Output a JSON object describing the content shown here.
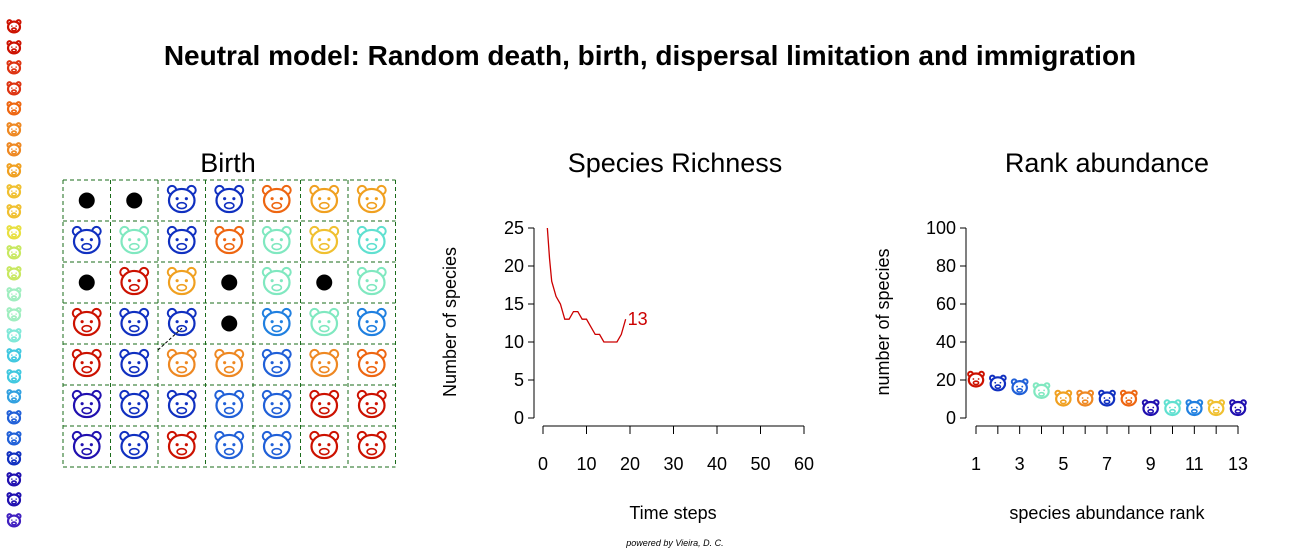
{
  "title": "Neutral model:  Random death, birth, dispersal limitation and immigration",
  "credit": "powered by Vieira, D. C.",
  "species_colors": [
    "#cc1100",
    "#dd3311",
    "#ee6611",
    "#ee8822",
    "#f0a020",
    "#f0c030",
    "#e8e040",
    "#c8e860",
    "#a0eec0",
    "#80e8d8",
    "#40c8e0",
    "#30a0e0",
    "#2060d8",
    "#1030c0",
    "#2010b0",
    "#4020c0"
  ],
  "birth_panel": {
    "title": "Birth",
    "grid": [
      [
        "empty",
        "empty",
        "lion-icon",
        "lion-icon",
        "raccoon-icon",
        "cow-icon",
        "cow-icon"
      ],
      [
        "tiger-icon",
        "monkey-icon",
        "lion-icon",
        "raccoon-icon",
        "monkey-icon",
        "fox-icon",
        "goat-icon"
      ],
      [
        "empty",
        "cat-icon",
        "cow-icon",
        "empty",
        "monkey-icon",
        "empty",
        "monkey-icon"
      ],
      [
        "cat-icon",
        "tiger-icon",
        "tiger-icon",
        "empty",
        "goat-icon",
        "monkey-icon",
        "wolf-icon"
      ],
      [
        "cat-icon",
        "tiger-icon",
        "pig-icon",
        "pig-icon",
        "bull-icon",
        "pig-icon",
        "raccoon-icon"
      ],
      [
        "zebra-icon",
        "tiger-icon",
        "tiger-icon",
        "bull-icon",
        "bull-icon",
        "cat-icon",
        "cat-icon"
      ],
      [
        "zebra-icon",
        "tiger-icon",
        "cat-icon",
        "bull-icon",
        "bull-icon",
        "cat-icon",
        "cat-icon"
      ]
    ],
    "cell_colors": [
      [
        "",
        "",
        "#1030c0",
        "#1030c0",
        "#ee6611",
        "#f0a020",
        "#f0a020"
      ],
      [
        "#1030c0",
        "#80e8c0",
        "#1030c0",
        "#ee6611",
        "#80e8c0",
        "#f0c030",
        "#60e0d0"
      ],
      [
        "",
        "#cc1100",
        "#f0a020",
        "",
        "#80e8c0",
        "",
        "#80e8c0"
      ],
      [
        "#cc1100",
        "#1030c0",
        "#1030c0",
        "",
        "#2080e0",
        "#80e8c0",
        "#2080e0"
      ],
      [
        "#cc1100",
        "#1030c0",
        "#ee8822",
        "#ee8822",
        "#2060d8",
        "#ee8822",
        "#ee6611"
      ],
      [
        "#2010b0",
        "#1030c0",
        "#1030c0",
        "#2060d8",
        "#2060d8",
        "#cc1100",
        "#cc1100"
      ],
      [
        "#2010b0",
        "#1030c0",
        "#cc1100",
        "#2060d8",
        "#2060d8",
        "#cc1100",
        "#cc1100"
      ]
    ]
  },
  "chart_data": [
    {
      "type": "line",
      "title": "Species Richness",
      "xlabel": "Time steps",
      "ylabel": "Number of species",
      "xlim": [
        0,
        60
      ],
      "ylim": [
        0,
        25
      ],
      "x_ticks": [
        "0",
        "10",
        "20",
        "30",
        "40",
        "50",
        "60"
      ],
      "y_ticks": [
        "0",
        "5",
        "10",
        "15",
        "20",
        "25"
      ],
      "series": [
        {
          "color": "#cc0000",
          "x": [
            1,
            1.5,
            2,
            3,
            4,
            5,
            6,
            7,
            8,
            9,
            10,
            11,
            12,
            13,
            14,
            15,
            16,
            17,
            18,
            19
          ],
          "y": [
            25,
            21,
            18,
            16,
            15,
            13,
            13,
            14,
            14,
            13,
            13,
            12,
            11,
            11,
            10,
            10,
            10,
            10,
            11,
            13
          ]
        }
      ],
      "end_label": "13"
    },
    {
      "type": "scatter",
      "title": "Rank abundance",
      "xlabel": "species abundance rank",
      "ylabel": "number of species",
      "xlim": [
        1,
        13
      ],
      "ylim": [
        0,
        100
      ],
      "x_ticks": [
        "1",
        "3",
        "5",
        "7",
        "9",
        "11",
        "13"
      ],
      "y_ticks": [
        "0",
        "20",
        "40",
        "60",
        "80",
        "100"
      ],
      "points": [
        {
          "rank": 1,
          "value": 20,
          "icon": "cat-icon",
          "color": "#cc1100"
        },
        {
          "rank": 2,
          "value": 18,
          "icon": "tiger-icon",
          "color": "#1030c0"
        },
        {
          "rank": 3,
          "value": 16,
          "icon": "bull-icon",
          "color": "#2060d8"
        },
        {
          "rank": 4,
          "value": 14,
          "icon": "monkey-icon",
          "color": "#80e8c0"
        },
        {
          "rank": 5,
          "value": 10,
          "icon": "cow-icon",
          "color": "#f0a020"
        },
        {
          "rank": 6,
          "value": 10,
          "icon": "pig-icon",
          "color": "#ee8822"
        },
        {
          "rank": 7,
          "value": 10,
          "icon": "lion-icon",
          "color": "#1030c0"
        },
        {
          "rank": 8,
          "value": 10,
          "icon": "raccoon-icon",
          "color": "#ee6611"
        },
        {
          "rank": 9,
          "value": 5,
          "icon": "zebra-icon",
          "color": "#2010b0"
        },
        {
          "rank": 10,
          "value": 5,
          "icon": "goat-icon",
          "color": "#60e0d0"
        },
        {
          "rank": 11,
          "value": 5,
          "icon": "wolf-icon",
          "color": "#2080e0"
        },
        {
          "rank": 12,
          "value": 5,
          "icon": "fox-icon",
          "color": "#f0c030"
        },
        {
          "rank": 13,
          "value": 5,
          "icon": "zebra-icon",
          "color": "#2010b0"
        }
      ]
    }
  ]
}
